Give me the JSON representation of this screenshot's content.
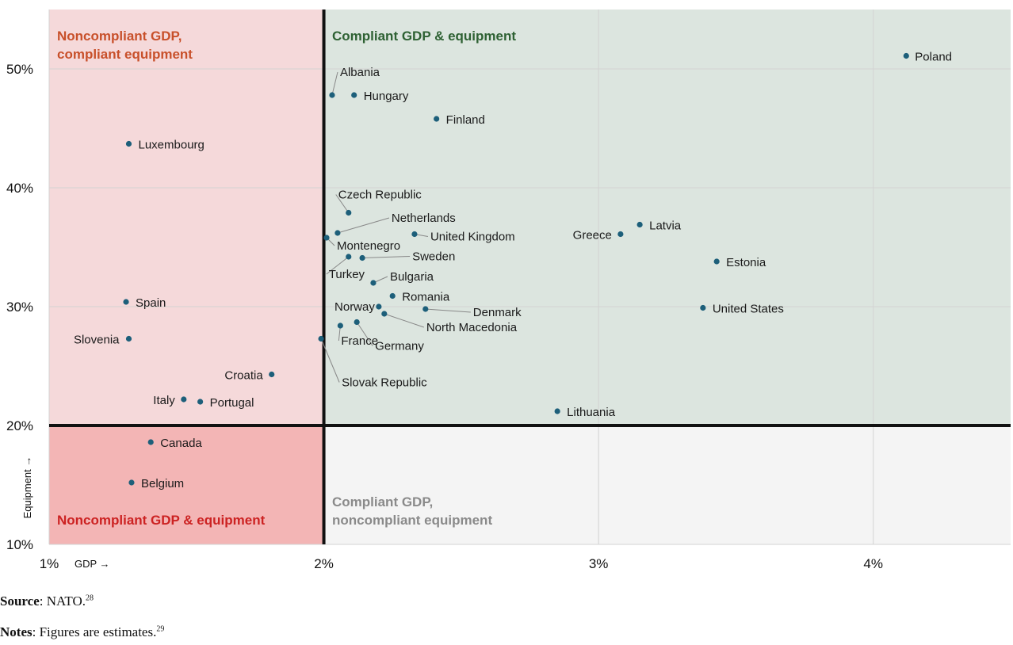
{
  "chart_data": {
    "type": "scatter",
    "xlabel": "GDP →",
    "ylabel": "Equipment →",
    "xlim": [
      1,
      4.5
    ],
    "ylim": [
      10,
      55
    ],
    "x_ticks": [
      {
        "v": 1,
        "label": "1%"
      },
      {
        "v": 2,
        "label": "2%"
      },
      {
        "v": 3,
        "label": "3%"
      },
      {
        "v": 4,
        "label": "4%"
      }
    ],
    "y_ticks": [
      {
        "v": 10,
        "label": "10%"
      },
      {
        "v": 20,
        "label": "20%"
      },
      {
        "v": 30,
        "label": "30%"
      },
      {
        "v": 40,
        "label": "40%"
      },
      {
        "v": 50,
        "label": "50%"
      }
    ],
    "thresholds": {
      "x": 2,
      "y": 20
    },
    "quadrants": [
      {
        "id": "top-left",
        "title_lines": [
          "Noncompliant GDP,",
          "compliant equipment"
        ],
        "fill": "#f5d9da",
        "text_color": "#c8502a"
      },
      {
        "id": "top-right",
        "title_lines": [
          "Compliant GDP & equipment"
        ],
        "fill": "#dce5df",
        "text_color": "#2e6133"
      },
      {
        "id": "bottom-left",
        "title_lines": [
          "Noncompliant GDP & equipment"
        ],
        "fill": "#f3b5b5",
        "text_color": "#cc2222"
      },
      {
        "id": "bottom-right",
        "title_lines": [
          "Compliant GDP,",
          "noncompliant equipment"
        ],
        "fill": "#f4f4f4",
        "text_color": "#8a8a8a"
      }
    ],
    "colors": {
      "point": "#1d5f7a",
      "grid": "#d3d3d3",
      "threshold": "#111111",
      "leader": "#888888"
    },
    "points": [
      {
        "name": "Poland",
        "x": 4.12,
        "y": 51.1
      },
      {
        "name": "Albania",
        "x": 2.03,
        "y": 47.8
      },
      {
        "name": "Hungary",
        "x": 2.11,
        "y": 47.8
      },
      {
        "name": "Finland",
        "x": 2.41,
        "y": 45.8
      },
      {
        "name": "Luxembourg",
        "x": 1.29,
        "y": 43.7
      },
      {
        "name": "Czech Republic",
        "x": 2.09,
        "y": 37.9
      },
      {
        "name": "Latvia",
        "x": 3.15,
        "y": 36.9
      },
      {
        "name": "Greece",
        "x": 3.08,
        "y": 36.1
      },
      {
        "name": "Netherlands",
        "x": 2.05,
        "y": 36.2
      },
      {
        "name": "United Kingdom",
        "x": 2.33,
        "y": 36.1
      },
      {
        "name": "Montenegro",
        "x": 2.01,
        "y": 35.8
      },
      {
        "name": "Sweden",
        "x": 2.14,
        "y": 34.1
      },
      {
        "name": "Turkey",
        "x": 2.09,
        "y": 34.2
      },
      {
        "name": "Estonia",
        "x": 3.43,
        "y": 33.8
      },
      {
        "name": "Bulgaria",
        "x": 2.18,
        "y": 32.0
      },
      {
        "name": "Romania",
        "x": 2.25,
        "y": 30.9
      },
      {
        "name": "Spain",
        "x": 1.28,
        "y": 30.4
      },
      {
        "name": "Norway",
        "x": 2.2,
        "y": 30.0
      },
      {
        "name": "United States",
        "x": 3.38,
        "y": 29.9
      },
      {
        "name": "Denmark",
        "x": 2.37,
        "y": 29.8
      },
      {
        "name": "North Macedonia",
        "x": 2.22,
        "y": 29.4
      },
      {
        "name": "Germany",
        "x": 2.12,
        "y": 28.7
      },
      {
        "name": "France",
        "x": 2.06,
        "y": 28.4
      },
      {
        "name": "Slovenia",
        "x": 1.29,
        "y": 27.3
      },
      {
        "name": "Slovak Republic",
        "x": 1.99,
        "y": 27.3
      },
      {
        "name": "Croatia",
        "x": 1.81,
        "y": 24.3
      },
      {
        "name": "Italy",
        "x": 1.49,
        "y": 22.2
      },
      {
        "name": "Portugal",
        "x": 1.55,
        "y": 22.0
      },
      {
        "name": "Lithuania",
        "x": 2.85,
        "y": 21.2
      },
      {
        "name": "Canada",
        "x": 1.37,
        "y": 18.6
      },
      {
        "name": "Belgium",
        "x": 1.3,
        "y": 15.2
      }
    ]
  },
  "footer": {
    "source_label": "Source",
    "source_text": ": NATO.",
    "source_ref": "28",
    "notes_label": "Notes",
    "notes_text": ": Figures are estimates.",
    "notes_ref": "29"
  }
}
